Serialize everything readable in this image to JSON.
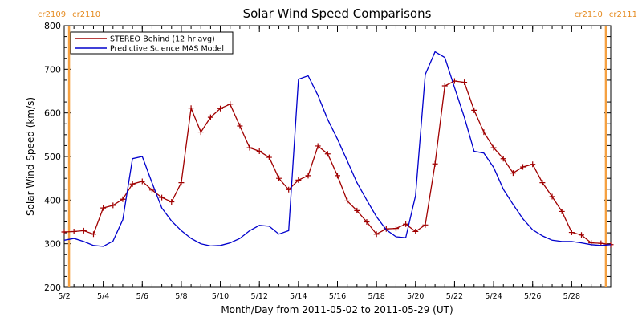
{
  "chart_data": {
    "type": "line",
    "title": "Solar Wind Speed Comparisons",
    "xlabel": "Month/Day from 2011-05-02 to 2011-05-29 (UT)",
    "ylabel": "Solar Wind Speed (km/s)",
    "xlim": [
      "2011-05-02T00:00",
      "2011-05-30T00:00"
    ],
    "ylim": [
      200,
      800
    ],
    "y_ticks": [
      200,
      300,
      400,
      500,
      600,
      700,
      800
    ],
    "x_ticks": [
      {
        "date": "2011-05-02",
        "label": "5/2"
      },
      {
        "date": "2011-05-04",
        "label": "5/4"
      },
      {
        "date": "2011-05-06",
        "label": "5/6"
      },
      {
        "date": "2011-05-08",
        "label": "5/8"
      },
      {
        "date": "2011-05-10",
        "label": "5/10"
      },
      {
        "date": "2011-05-12",
        "label": "5/12"
      },
      {
        "date": "2011-05-14",
        "label": "5/14"
      },
      {
        "date": "2011-05-16",
        "label": "5/16"
      },
      {
        "date": "2011-05-18",
        "label": "5/18"
      },
      {
        "date": "2011-05-20",
        "label": "5/20"
      },
      {
        "date": "2011-05-22",
        "label": "5/22"
      },
      {
        "date": "2011-05-24",
        "label": "5/24"
      },
      {
        "date": "2011-05-26",
        "label": "5/26"
      },
      {
        "date": "2011-05-28",
        "label": "5/28"
      }
    ],
    "carrington_markers": [
      {
        "date": "2011-05-02T06:00",
        "labels": [
          "cr2109",
          "cr2110"
        ],
        "side": "left"
      },
      {
        "date": "2011-05-29T18:00",
        "labels": [
          "cr2110",
          "cr2111"
        ],
        "side": "right"
      }
    ],
    "colors": {
      "stereo": "#a00000",
      "mas": "#0000cc",
      "carrington": "#f5a040"
    },
    "series": [
      {
        "name": "STEREO-Behind (12-hr avg)",
        "markers": true,
        "x": [
          "2011-05-02T00:00",
          "2011-05-02T12:00",
          "2011-05-03T00:00",
          "2011-05-03T12:00",
          "2011-05-04T00:00",
          "2011-05-04T12:00",
          "2011-05-05T00:00",
          "2011-05-05T12:00",
          "2011-05-06T00:00",
          "2011-05-06T12:00",
          "2011-05-07T00:00",
          "2011-05-07T12:00",
          "2011-05-08T00:00",
          "2011-05-08T12:00",
          "2011-05-09T00:00",
          "2011-05-09T12:00",
          "2011-05-10T00:00",
          "2011-05-10T12:00",
          "2011-05-11T00:00",
          "2011-05-11T12:00",
          "2011-05-12T00:00",
          "2011-05-12T12:00",
          "2011-05-13T00:00",
          "2011-05-13T12:00",
          "2011-05-14T00:00",
          "2011-05-14T12:00",
          "2011-05-15T00:00",
          "2011-05-15T12:00",
          "2011-05-16T00:00",
          "2011-05-16T12:00",
          "2011-05-17T00:00",
          "2011-05-17T12:00",
          "2011-05-18T00:00",
          "2011-05-18T12:00",
          "2011-05-19T00:00",
          "2011-05-19T12:00",
          "2011-05-20T00:00",
          "2011-05-20T12:00",
          "2011-05-21T00:00",
          "2011-05-21T12:00",
          "2011-05-22T00:00",
          "2011-05-22T12:00",
          "2011-05-23T00:00",
          "2011-05-23T12:00",
          "2011-05-24T00:00",
          "2011-05-24T12:00",
          "2011-05-25T00:00",
          "2011-05-25T12:00",
          "2011-05-26T00:00",
          "2011-05-26T12:00",
          "2011-05-27T00:00",
          "2011-05-27T12:00",
          "2011-05-28T00:00",
          "2011-05-28T12:00",
          "2011-05-29T00:00",
          "2011-05-29T12:00",
          "2011-05-30T00:00"
        ],
        "y": [
          327,
          328,
          330,
          322,
          382,
          388,
          402,
          437,
          443,
          423,
          406,
          396,
          440,
          611,
          556,
          590,
          610,
          620,
          570,
          520,
          512,
          498,
          450,
          424,
          446,
          456,
          524,
          506,
          456,
          398,
          376,
          350,
          322,
          334,
          335,
          345,
          328,
          343,
          483,
          662,
          673,
          670,
          606,
          556,
          520,
          495,
          462,
          476,
          482,
          440,
          408,
          374,
          326,
          320,
          302,
          301,
          298
        ]
      },
      {
        "name": "Predictive Science MAS Model",
        "markers": false,
        "x": [
          "2011-05-02T00:00",
          "2011-05-02T12:00",
          "2011-05-03T00:00",
          "2011-05-03T12:00",
          "2011-05-04T00:00",
          "2011-05-04T12:00",
          "2011-05-05T00:00",
          "2011-05-05T12:00",
          "2011-05-06T00:00",
          "2011-05-06T12:00",
          "2011-05-07T00:00",
          "2011-05-07T12:00",
          "2011-05-08T00:00",
          "2011-05-08T12:00",
          "2011-05-09T00:00",
          "2011-05-09T12:00",
          "2011-05-10T00:00",
          "2011-05-10T12:00",
          "2011-05-11T00:00",
          "2011-05-11T12:00",
          "2011-05-12T00:00",
          "2011-05-12T12:00",
          "2011-05-13T00:00",
          "2011-05-13T12:00",
          "2011-05-14T00:00",
          "2011-05-14T12:00",
          "2011-05-15T00:00",
          "2011-05-15T12:00",
          "2011-05-16T00:00",
          "2011-05-16T12:00",
          "2011-05-17T00:00",
          "2011-05-17T12:00",
          "2011-05-18T00:00",
          "2011-05-18T12:00",
          "2011-05-19T00:00",
          "2011-05-19T12:00",
          "2011-05-20T00:00",
          "2011-05-20T12:00",
          "2011-05-21T00:00",
          "2011-05-21T12:00",
          "2011-05-22T00:00",
          "2011-05-22T12:00",
          "2011-05-23T00:00",
          "2011-05-23T12:00",
          "2011-05-24T00:00",
          "2011-05-24T12:00",
          "2011-05-25T00:00",
          "2011-05-25T12:00",
          "2011-05-26T00:00",
          "2011-05-26T12:00",
          "2011-05-27T00:00",
          "2011-05-27T12:00",
          "2011-05-28T00:00",
          "2011-05-28T12:00",
          "2011-05-29T00:00",
          "2011-05-29T12:00",
          "2011-05-30T00:00"
        ],
        "y": [
          308,
          312,
          305,
          296,
          294,
          306,
          355,
          495,
          500,
          440,
          382,
          352,
          330,
          312,
          300,
          295,
          296,
          302,
          312,
          330,
          342,
          340,
          322,
          330,
          677,
          685,
          640,
          585,
          540,
          490,
          440,
          400,
          362,
          332,
          316,
          314,
          410,
          688,
          740,
          727,
          658,
          590,
          512,
          508,
          475,
          425,
          390,
          357,
          332,
          318,
          308,
          305,
          305,
          302,
          298,
          296,
          298
        ]
      }
    ],
    "legend": {
      "placement": "top-left"
    },
    "grid": false
  }
}
